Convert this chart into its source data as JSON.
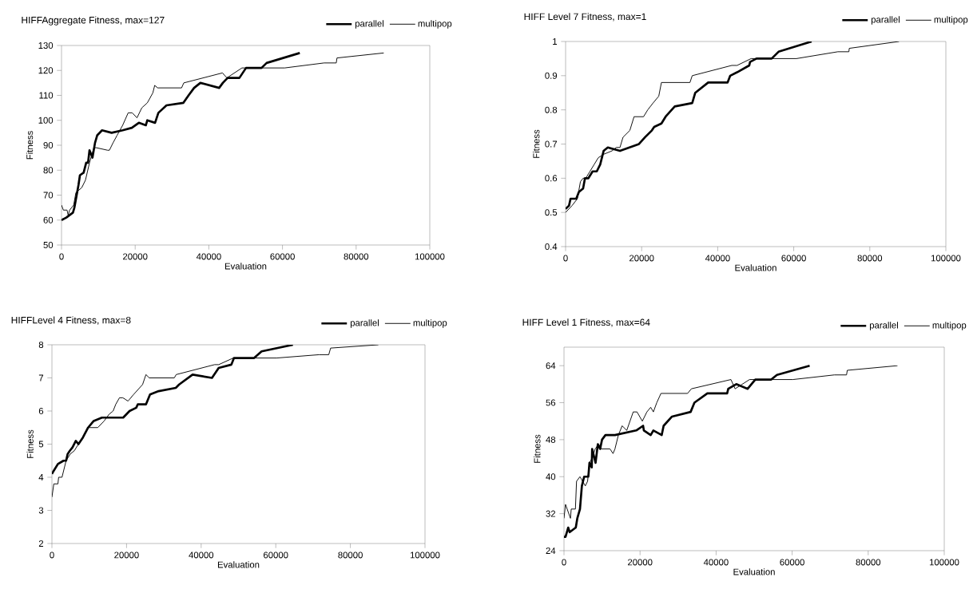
{
  "chart_data": [
    {
      "type": "line",
      "title": "HIFFAggregate Fitness, max=127",
      "xlabel": "Evaluation",
      "ylabel": "Fitness",
      "xlim": [
        0,
        100000
      ],
      "ylim": [
        50,
        130
      ],
      "xticks": [
        0,
        20000,
        40000,
        60000,
        80000,
        100000
      ],
      "yticks": [
        50,
        60,
        70,
        80,
        90,
        100,
        110,
        120,
        130
      ],
      "legend": "top right",
      "series": [
        {
          "name": "parallel",
          "color": "#000000",
          "x": [
            0,
            1300,
            3100,
            3500,
            4600,
            5000,
            6000,
            6700,
            7200,
            7600,
            8400,
            9100,
            9700,
            11000,
            13600,
            16600,
            19100,
            21000,
            22900,
            23300,
            25400,
            26300,
            28500,
            33100,
            34500,
            36000,
            37700,
            42800,
            43800,
            45100,
            48300,
            50100,
            54300,
            55700,
            64700
          ],
          "values": [
            60,
            61,
            63,
            65,
            74,
            78,
            79,
            83,
            83,
            88,
            85,
            91,
            94,
            96,
            95,
            96,
            97,
            99,
            98,
            100,
            99,
            103,
            106,
            107,
            110,
            113,
            115,
            113,
            115,
            117,
            117,
            121,
            121,
            123,
            127
          ]
        },
        {
          "name": "multipop",
          "color": "#000000",
          "x": [
            0,
            500,
            1500,
            1800,
            2200,
            3300,
            3900,
            5500,
            6500,
            7600,
            8800,
            9500,
            12500,
            13000,
            14000,
            15100,
            16600,
            18100,
            19200,
            20500,
            21800,
            23300,
            24800,
            25300,
            26100,
            32600,
            33200,
            43700,
            44900,
            49000,
            60600,
            71300,
            74600,
            74800,
            87500
          ],
          "values": [
            66,
            64,
            64,
            62,
            64,
            66,
            71,
            73,
            76,
            83,
            89,
            89,
            88,
            88,
            91,
            94,
            98,
            103,
            103,
            101,
            105,
            107,
            111,
            114,
            113,
            113,
            115,
            119,
            117,
            121,
            121,
            123,
            123,
            125,
            127
          ]
        }
      ]
    },
    {
      "type": "line",
      "title": "HIFF Level 7 Fitness, max=1",
      "xlabel": "Evaluation",
      "ylabel": "Fitness",
      "xlim": [
        0,
        100000
      ],
      "ylim": [
        0.4,
        1
      ],
      "xticks": [
        0,
        20000,
        40000,
        60000,
        80000,
        100000
      ],
      "yticks": [
        0.4,
        0.5,
        0.6,
        0.7,
        0.8,
        0.9,
        1
      ],
      "legend": "top right",
      "series": [
        {
          "name": "parallel",
          "color": "#000000",
          "x": [
            0,
            900,
            1300,
            2800,
            3500,
            4600,
            5100,
            6000,
            7100,
            8200,
            9100,
            10000,
            11100,
            14300,
            19300,
            20900,
            22700,
            23300,
            25200,
            26300,
            28700,
            33300,
            34100,
            37500,
            42600,
            43300,
            45100,
            48300,
            48500,
            50200,
            54200,
            56000,
            64700
          ],
          "values": [
            0.51,
            0.52,
            0.54,
            0.54,
            0.56,
            0.57,
            0.6,
            0.6,
            0.62,
            0.62,
            0.64,
            0.68,
            0.69,
            0.68,
            0.7,
            0.72,
            0.74,
            0.75,
            0.76,
            0.78,
            0.81,
            0.82,
            0.85,
            0.88,
            0.88,
            0.9,
            0.91,
            0.93,
            0.94,
            0.95,
            0.95,
            0.97,
            1
          ]
        },
        {
          "name": "multipop",
          "color": "#000000",
          "x": [
            0,
            1700,
            3100,
            3900,
            4600,
            5300,
            6400,
            7500,
            8600,
            10000,
            12200,
            13300,
            14300,
            15100,
            16900,
            18000,
            20500,
            21600,
            23000,
            24500,
            25200,
            32700,
            33300,
            43700,
            45100,
            48800,
            60700,
            71600,
            74500,
            74600,
            87700
          ],
          "values": [
            0.5,
            0.52,
            0.54,
            0.59,
            0.6,
            0.6,
            0.62,
            0.64,
            0.66,
            0.67,
            0.68,
            0.69,
            0.69,
            0.72,
            0.74,
            0.78,
            0.78,
            0.8,
            0.82,
            0.84,
            0.88,
            0.88,
            0.9,
            0.93,
            0.93,
            0.95,
            0.95,
            0.97,
            0.97,
            0.98,
            1
          ]
        }
      ]
    },
    {
      "type": "line",
      "title": "HIFFLevel 4 Fitness, max=8",
      "xlabel": "Evaluation",
      "ylabel": "Fitness",
      "xlim": [
        0,
        100000
      ],
      "ylim": [
        2,
        8
      ],
      "xticks": [
        0,
        20000,
        40000,
        60000,
        80000,
        100000
      ],
      "yticks": [
        2,
        3,
        4,
        5,
        6,
        7,
        8
      ],
      "legend": "top right",
      "series": [
        {
          "name": "parallel",
          "color": "#000000",
          "x": [
            0,
            500,
            1600,
            3100,
            3800,
            4200,
            4800,
            5500,
            6400,
            7100,
            8300,
            9700,
            11200,
            13400,
            19100,
            20800,
            22600,
            23000,
            25200,
            26300,
            28600,
            33200,
            34100,
            37700,
            42900,
            44700,
            48100,
            48800,
            49900,
            54200,
            56200,
            64600
          ],
          "values": [
            4.1,
            4.2,
            4.4,
            4.5,
            4.5,
            4.7,
            4.8,
            4.9,
            5.1,
            5.0,
            5.2,
            5.5,
            5.7,
            5.8,
            5.8,
            6.0,
            6.1,
            6.2,
            6.2,
            6.5,
            6.6,
            6.7,
            6.8,
            7.1,
            7.0,
            7.3,
            7.4,
            7.6,
            7.6,
            7.6,
            7.8,
            8
          ]
        },
        {
          "name": "multipop",
          "color": "#000000",
          "x": [
            0,
            500,
            1600,
            1800,
            2700,
            3800,
            4900,
            6000,
            7100,
            8300,
            9700,
            10500,
            12300,
            14000,
            15300,
            16400,
            17100,
            18100,
            19000,
            20400,
            21900,
            24300,
            25200,
            26100,
            32800,
            33300,
            43600,
            44700,
            48600,
            60200,
            71600,
            74200,
            74700,
            87500
          ],
          "values": [
            3.4,
            3.8,
            3.8,
            4.0,
            4.0,
            4.5,
            4.7,
            4.8,
            5.0,
            5.2,
            5.5,
            5.5,
            5.5,
            5.7,
            5.9,
            6.0,
            6.2,
            6.4,
            6.4,
            6.3,
            6.5,
            6.8,
            7.1,
            7.0,
            7.0,
            7.1,
            7.4,
            7.4,
            7.6,
            7.6,
            7.7,
            7.7,
            7.9,
            8
          ]
        }
      ]
    },
    {
      "type": "line",
      "title": "HIFF Level 1 Fitness, max=64",
      "xlabel": "Evaluation",
      "ylabel": "Fitness",
      "xlim": [
        0,
        100000
      ],
      "ylim": [
        24,
        68
      ],
      "xticks": [
        0,
        20000,
        40000,
        60000,
        80000,
        100000
      ],
      "yticks": [
        24,
        32,
        40,
        48,
        56,
        64
      ],
      "legend": "top right",
      "series": [
        {
          "name": "parallel",
          "color": "#000000",
          "x": [
            0,
            400,
            1100,
            1500,
            3100,
            3500,
            4200,
            4700,
            5300,
            6400,
            6700,
            7300,
            7400,
            8300,
            8900,
            9500,
            10000,
            10900,
            13400,
            19000,
            20800,
            21000,
            22800,
            23500,
            25700,
            26200,
            28400,
            33300,
            34300,
            37700,
            42900,
            43200,
            45300,
            48300,
            50300,
            54500,
            56000,
            64600
          ],
          "values": [
            27,
            27,
            29,
            28,
            29,
            31,
            33,
            38,
            40,
            40,
            43,
            42,
            46,
            43,
            47,
            46,
            48,
            49,
            49,
            50,
            51,
            50,
            49,
            50,
            49,
            51,
            53,
            54,
            56,
            58,
            58,
            59,
            60,
            59,
            61,
            61,
            62,
            64
          ]
        },
        {
          "name": "multipop",
          "color": "#000000",
          "x": [
            0,
            400,
            1700,
            1900,
            3000,
            3300,
            4200,
            4900,
            5600,
            6200,
            6700,
            7400,
            8200,
            9100,
            9800,
            12100,
            12900,
            13400,
            14300,
            15300,
            16500,
            18200,
            19200,
            20600,
            21800,
            22800,
            23500,
            24400,
            25500,
            32500,
            33500,
            43900,
            45000,
            48800,
            60200,
            71100,
            74300,
            74500,
            87700
          ],
          "values": [
            31,
            34,
            31,
            33,
            33,
            39,
            40,
            39,
            38,
            39,
            43,
            44,
            46,
            47,
            46,
            46,
            45,
            46,
            49,
            51,
            50,
            54,
            54,
            52,
            54,
            55,
            54,
            56,
            58,
            58,
            59,
            61,
            59,
            61,
            61,
            62,
            62,
            63,
            64
          ]
        }
      ]
    }
  ]
}
